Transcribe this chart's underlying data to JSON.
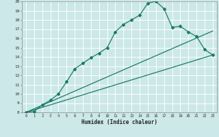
{
  "xlabel": "Humidex (Indice chaleur)",
  "ylabel": "",
  "bg_color": "#cce8e8",
  "line_color": "#1a7a6a",
  "grid_color": "#ffffff",
  "xlim": [
    -0.5,
    23.5
  ],
  "ylim": [
    8,
    20
  ],
  "yticks": [
    8,
    9,
    10,
    11,
    12,
    13,
    14,
    15,
    16,
    17,
    18,
    19,
    20
  ],
  "xticks": [
    0,
    1,
    2,
    3,
    4,
    5,
    6,
    7,
    8,
    9,
    10,
    11,
    12,
    13,
    14,
    15,
    16,
    17,
    18,
    19,
    20,
    21,
    22,
    23
  ],
  "curve1_x": [
    0,
    1,
    2,
    3,
    4,
    5,
    6,
    7,
    8,
    9,
    10,
    11,
    12,
    13,
    14,
    15,
    16,
    17,
    18,
    19,
    20,
    21,
    22,
    23
  ],
  "curve1_y": [
    8.0,
    8.1,
    8.8,
    9.3,
    10.0,
    11.3,
    12.7,
    13.3,
    13.9,
    14.4,
    15.0,
    16.7,
    17.5,
    18.0,
    18.5,
    19.8,
    20.0,
    19.2,
    17.2,
    17.3,
    16.7,
    16.2,
    14.8,
    14.2
  ],
  "line2_x": [
    0,
    23
  ],
  "line2_y": [
    8.0,
    16.8
  ],
  "line3_x": [
    0,
    23
  ],
  "line3_y": [
    8.0,
    14.2
  ]
}
